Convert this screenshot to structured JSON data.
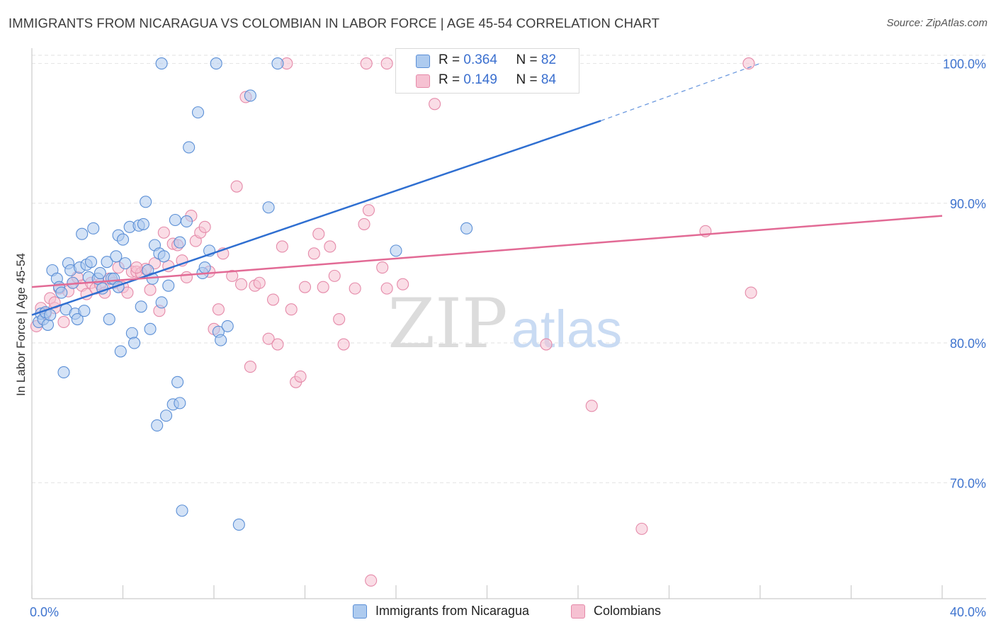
{
  "header": {
    "title": "IMMIGRANTS FROM NICARAGUA VS COLOMBIAN IN LABOR FORCE | AGE 45-54 CORRELATION CHART",
    "source": "Source: ZipAtlas.com"
  },
  "watermark": {
    "zip": "ZIP",
    "atlas": "atlas"
  },
  "legend": {
    "rows": [
      {
        "r_label": "R =",
        "r_value": "0.364",
        "n_label": "N =",
        "n_value": "82"
      },
      {
        "r_label": "R =",
        "r_value": "0.149",
        "n_label": "N =",
        "n_value": "84"
      }
    ]
  },
  "chart_data": {
    "type": "scatter",
    "title": "IMMIGRANTS FROM NICARAGUA VS COLOMBIAN IN LABOR FORCE | AGE 45-54 CORRELATION CHART",
    "ylabel": "In Labor Force | Age 45-54",
    "xlabel": "",
    "xlim": [
      0,
      40
    ],
    "ylim": [
      61.7,
      101.5
    ],
    "x_tick_labels": [
      "0.0%",
      "40.0%"
    ],
    "y_ticks": [
      70,
      80,
      90,
      100
    ],
    "y_tick_labels": [
      "70.0%",
      "80.0%",
      "90.0%",
      "100.0%"
    ],
    "grid": true,
    "legend_position": "top-center",
    "colors": {
      "nicaragua_fill": "#aecbef",
      "nicaragua_stroke": "#5b8fd6",
      "nicaragua_line": "#2f6fd1",
      "colombian_fill": "#f6c1d2",
      "colombian_stroke": "#e58aa9",
      "colombian_line": "#e26a95",
      "axis_label": "#3f74cf"
    },
    "series": [
      {
        "name": "Immigrants from Nicaragua",
        "points": [
          [
            0.3,
            81.5
          ],
          [
            0.4,
            82.1
          ],
          [
            0.5,
            81.7
          ],
          [
            0.6,
            82.2
          ],
          [
            0.7,
            81.3
          ],
          [
            0.8,
            82.0
          ],
          [
            0.9,
            85.2
          ],
          [
            1.1,
            84.6
          ],
          [
            1.2,
            84.0
          ],
          [
            1.3,
            83.6
          ],
          [
            1.4,
            77.9
          ],
          [
            1.5,
            82.4
          ],
          [
            1.6,
            85.7
          ],
          [
            1.7,
            85.2
          ],
          [
            1.8,
            84.3
          ],
          [
            1.9,
            82.1
          ],
          [
            2.0,
            81.7
          ],
          [
            2.1,
            85.4
          ],
          [
            2.2,
            87.8
          ],
          [
            2.3,
            82.3
          ],
          [
            2.4,
            85.6
          ],
          [
            2.5,
            84.7
          ],
          [
            2.6,
            85.8
          ],
          [
            2.7,
            88.2
          ],
          [
            2.9,
            84.6
          ],
          [
            3.0,
            85.0
          ],
          [
            3.1,
            83.9
          ],
          [
            3.3,
            85.8
          ],
          [
            3.4,
            81.7
          ],
          [
            3.5,
            84.6
          ],
          [
            3.6,
            84.6
          ],
          [
            3.7,
            86.2
          ],
          [
            3.8,
            87.7
          ],
          [
            3.9,
            79.4
          ],
          [
            4.0,
            87.4
          ],
          [
            4.1,
            85.7
          ],
          [
            4.3,
            88.3
          ],
          [
            4.4,
            80.7
          ],
          [
            4.5,
            80.0
          ],
          [
            4.7,
            88.4
          ],
          [
            4.8,
            82.6
          ],
          [
            4.9,
            88.5
          ],
          [
            5.0,
            90.1
          ],
          [
            5.1,
            85.2
          ],
          [
            5.2,
            81.0
          ],
          [
            5.3,
            84.6
          ],
          [
            5.4,
            87.0
          ],
          [
            5.5,
            74.1
          ],
          [
            5.6,
            86.4
          ],
          [
            5.7,
            82.9
          ],
          [
            5.8,
            86.2
          ],
          [
            5.9,
            74.8
          ],
          [
            6.0,
            84.1
          ],
          [
            6.2,
            75.6
          ],
          [
            6.3,
            88.8
          ],
          [
            6.4,
            77.2
          ],
          [
            6.5,
            75.7
          ],
          [
            6.6,
            68.0
          ],
          [
            6.8,
            88.7
          ],
          [
            6.9,
            94.0
          ],
          [
            7.3,
            96.5
          ],
          [
            7.5,
            85.0
          ],
          [
            7.6,
            85.4
          ],
          [
            7.8,
            86.6
          ],
          [
            8.2,
            80.8
          ],
          [
            8.3,
            80.2
          ],
          [
            8.6,
            81.2
          ],
          [
            9.1,
            67.0
          ],
          [
            9.6,
            97.7
          ],
          [
            10.4,
            89.7
          ],
          [
            16.0,
            86.6
          ],
          [
            19.1,
            88.2
          ],
          [
            5.7,
            100.0
          ],
          [
            8.1,
            100.0
          ],
          [
            10.8,
            100.0
          ],
          [
            16.9,
            100.0
          ],
          [
            17.5,
            100.0
          ],
          [
            20.7,
            100.0
          ],
          [
            21.0,
            100.0
          ],
          [
            22.5,
            100.0
          ],
          [
            3.8,
            84.0
          ],
          [
            6.5,
            87.2
          ]
        ]
      },
      {
        "name": "Colombians",
        "points": [
          [
            0.2,
            81.2
          ],
          [
            0.4,
            82.5
          ],
          [
            0.6,
            82.1
          ],
          [
            0.8,
            83.2
          ],
          [
            1.0,
            82.5
          ],
          [
            1.2,
            83.9
          ],
          [
            1.4,
            81.5
          ],
          [
            1.6,
            83.7
          ],
          [
            1.8,
            84.3
          ],
          [
            2.0,
            84.7
          ],
          [
            2.2,
            84.1
          ],
          [
            2.4,
            83.5
          ],
          [
            2.6,
            84.3
          ],
          [
            2.8,
            83.9
          ],
          [
            3.0,
            84.2
          ],
          [
            3.2,
            83.6
          ],
          [
            3.4,
            84.6
          ],
          [
            3.6,
            84.3
          ],
          [
            3.8,
            85.4
          ],
          [
            4.0,
            84.0
          ],
          [
            4.2,
            83.6
          ],
          [
            4.4,
            85.1
          ],
          [
            4.6,
            85.1
          ],
          [
            4.8,
            85.0
          ],
          [
            5.0,
            85.3
          ],
          [
            5.2,
            83.8
          ],
          [
            5.4,
            85.7
          ],
          [
            5.6,
            82.3
          ],
          [
            5.8,
            87.9
          ],
          [
            6.0,
            85.5
          ],
          [
            6.2,
            87.1
          ],
          [
            6.4,
            87.0
          ],
          [
            6.6,
            85.9
          ],
          [
            6.8,
            84.7
          ],
          [
            7.0,
            89.1
          ],
          [
            7.2,
            87.3
          ],
          [
            7.4,
            87.9
          ],
          [
            7.6,
            88.3
          ],
          [
            7.8,
            85.1
          ],
          [
            8.0,
            81.0
          ],
          [
            8.2,
            82.4
          ],
          [
            8.4,
            86.4
          ],
          [
            8.8,
            84.8
          ],
          [
            9.0,
            91.2
          ],
          [
            9.2,
            84.2
          ],
          [
            9.4,
            97.6
          ],
          [
            9.6,
            78.3
          ],
          [
            9.8,
            84.1
          ],
          [
            10.0,
            84.3
          ],
          [
            10.4,
            80.3
          ],
          [
            10.6,
            83.1
          ],
          [
            10.8,
            79.9
          ],
          [
            11.0,
            86.9
          ],
          [
            11.4,
            82.4
          ],
          [
            11.6,
            77.2
          ],
          [
            11.8,
            77.6
          ],
          [
            12.0,
            84.0
          ],
          [
            12.4,
            86.4
          ],
          [
            12.6,
            87.8
          ],
          [
            12.8,
            84.0
          ],
          [
            13.1,
            86.9
          ],
          [
            13.3,
            84.8
          ],
          [
            13.5,
            81.7
          ],
          [
            13.7,
            79.9
          ],
          [
            14.2,
            83.9
          ],
          [
            14.6,
            88.5
          ],
          [
            14.8,
            89.5
          ],
          [
            15.4,
            85.4
          ],
          [
            15.6,
            83.9
          ],
          [
            16.3,
            84.2
          ],
          [
            17.7,
            97.1
          ],
          [
            22.6,
            79.9
          ],
          [
            24.6,
            75.5
          ],
          [
            26.8,
            66.7
          ],
          [
            29.6,
            88.0
          ],
          [
            31.6,
            83.6
          ],
          [
            11.2,
            100.0
          ],
          [
            14.7,
            100.0
          ],
          [
            15.6,
            100.0
          ],
          [
            22.5,
            100.0
          ],
          [
            31.5,
            100.0
          ],
          [
            14.9,
            63.0
          ],
          [
            4.6,
            85.4
          ],
          [
            1.0,
            82.9
          ]
        ]
      }
    ],
    "trendlines": [
      {
        "series": "Immigrants from Nicaragua",
        "solid_from": [
          0.0,
          82.0
        ],
        "solid_to": [
          25.0,
          95.9
        ],
        "dashed_to": [
          32.0,
          100.0
        ]
      },
      {
        "series": "Colombians",
        "from": [
          0.0,
          84.0
        ],
        "to": [
          40.0,
          89.1
        ]
      }
    ]
  }
}
